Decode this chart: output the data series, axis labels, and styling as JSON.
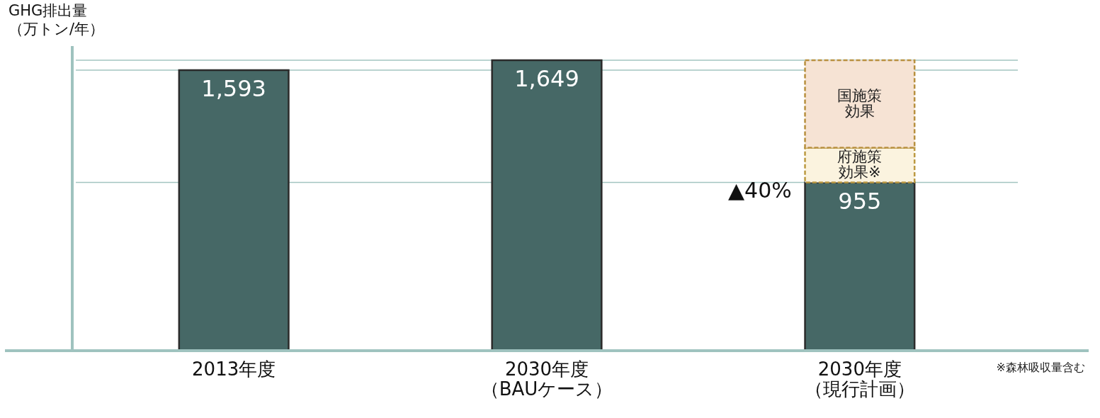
{
  "chart_data": {
    "type": "bar",
    "stacked": true,
    "ylabel": "GHG排出量（万トン/年）",
    "categories": [
      "2013年度",
      "2030年度（BAUケース）",
      "2030年度（現行計画）"
    ],
    "series": [
      {
        "color": "#466866",
        "values": [
          1593,
          1649,
          955
        ],
        "value_labels": [
          "1,593",
          "1,649",
          "955"
        ]
      },
      {
        "name": "府施策効果※",
        "color": "#fbf3df",
        "line_style": "dashed",
        "values": [
          null,
          null,
          197
        ]
      },
      {
        "name": "国施策効果",
        "color": "#f6e3d4",
        "line_style": "dashed",
        "values": [
          null,
          null,
          497
        ]
      }
    ],
    "tick_labels": "x",
    "ref_lines": [
      {
        "axis": "y",
        "value": 1593,
        "color": "#a3c4c0"
      },
      {
        "axis": "y",
        "value": 1649,
        "color": "#a3c4c0"
      },
      {
        "axis": "y",
        "value": 955,
        "color": "#a3c4c0"
      }
    ],
    "annotations": [
      "▲40%",
      "※森林吸収量含む"
    ]
  }
}
